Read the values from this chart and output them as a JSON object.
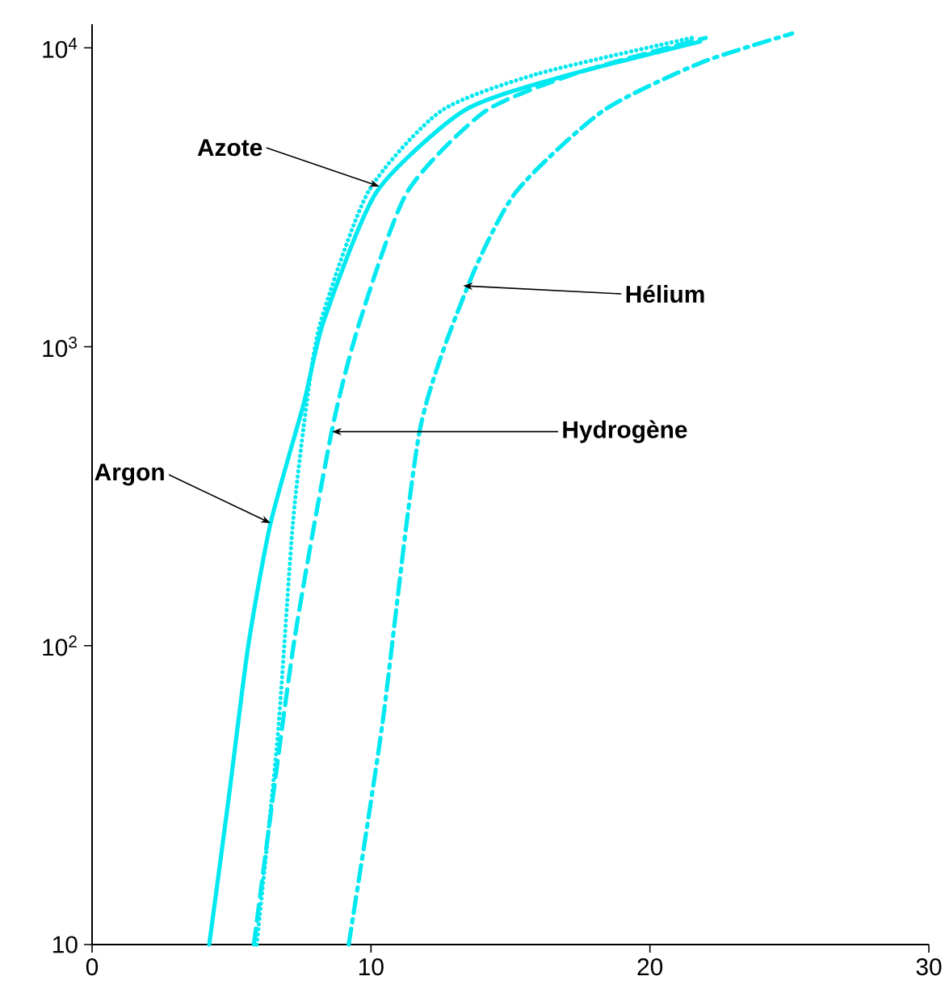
{
  "chart_data": {
    "type": "line",
    "log": "y",
    "xlim": [
      0,
      30
    ],
    "ylim": [
      10,
      12000
    ],
    "xticks": [
      0,
      10,
      20,
      30
    ],
    "yticks": [
      10,
      {
        "value": 100,
        "label": "10$^{2}$"
      },
      {
        "value": 1000,
        "label": "10$^{3}$"
      },
      {
        "value": 10000,
        "label": "10$^{4}$"
      }
    ],
    "grid": false,
    "series": [
      {
        "color": "#00e8f0",
        "line_style": "solid",
        "x": [
          4.2,
          4.9,
          5.6,
          6.4,
          7.6,
          8.3,
          10.2,
          13.3,
          16.6,
          21.8
        ],
        "values": [
          10,
          31,
          100,
          257,
          652,
          1216,
          3296,
          6140,
          7890,
          10500
        ]
      },
      {
        "color": "#00e8f0",
        "line_style": "dotted",
        "x": [
          5.9,
          6.65,
          7.2,
          7.7,
          8.2,
          9.9,
          12.5,
          16.0,
          21.5
        ],
        "values": [
          10,
          49,
          257,
          652,
          1216,
          3296,
          6140,
          8200,
          10800
        ]
      },
      {
        "color": "#00e8f0",
        "line_style": "dashed",
        "x": [
          5.8,
          7.2,
          8.6,
          9.6,
          11.3,
          14.1,
          17.5,
          22
        ],
        "values": [
          10,
          97,
          526,
          1216,
          3296,
          6140,
          8300,
          10800
        ]
      },
      {
        "color": "#00e8f0",
        "line_style": "dashdot",
        "x": [
          9.2,
          10.4,
          11.75,
          13.5,
          15.2,
          18.3,
          21.8,
          25.1
        ],
        "values": [
          10,
          54,
          526,
          1620,
          3296,
          6140,
          8900,
          11170
        ]
      }
    ],
    "annotations": [
      {
        "text": "Azote",
        "x": 10.3,
        "y": 3440
      },
      {
        "text": "Hélium",
        "x": 13.3,
        "y": 1600
      },
      {
        "text": "Hydrogène",
        "x": 8.6,
        "y": 520
      },
      {
        "text": "Argon",
        "x": 6.4,
        "y": 257
      }
    ]
  }
}
